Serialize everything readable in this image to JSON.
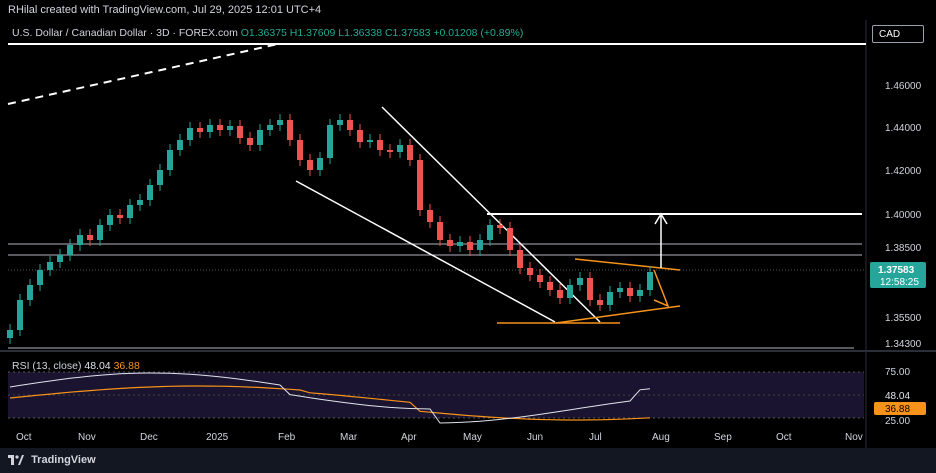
{
  "header": {
    "credit": "RHilal created with TradingView.com, Jul 29, 2025 12:01 UTC+4",
    "symbol_line": "U.S. Dollar / Canadian Dollar · 3D · FOREX.com",
    "ohlc": "O1.36375  H1.37609  L1.36338  C1.37583  +0.01208 (+0.89%)"
  },
  "currency_label": "CAD",
  "price_axis": {
    "ticks": [
      "1.46000",
      "1.44000",
      "1.42000",
      "1.40000",
      "1.38500",
      "1.35500",
      "1.34300"
    ],
    "last_price": "1.37583",
    "countdown": "12:58:25"
  },
  "time_axis": [
    "Oct",
    "Nov",
    "Dec",
    "2025",
    "Feb",
    "Mar",
    "Apr",
    "May",
    "Jun",
    "Jul",
    "Aug",
    "Sep",
    "Oct",
    "Nov"
  ],
  "rsi": {
    "label": "RSI (13, close)",
    "value": "48.04",
    "ma_value": "36.88",
    "axis_ticks": [
      "75.00",
      "25.00"
    ]
  },
  "footer": {
    "brand": "TradingView"
  },
  "colors": {
    "up": "#26a69a",
    "down": "#ef5350",
    "accent": "#f7931a",
    "background": "#000000"
  }
}
